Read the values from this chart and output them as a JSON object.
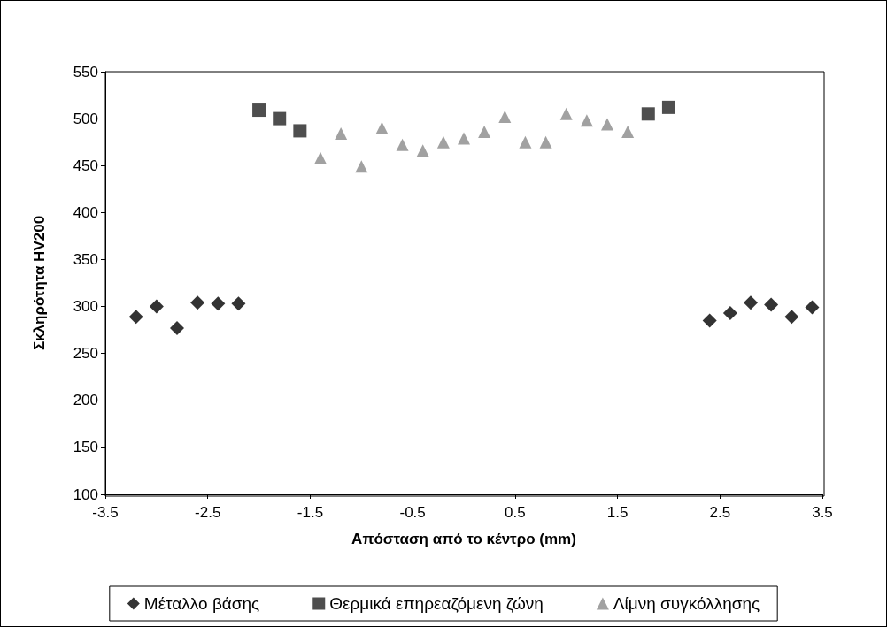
{
  "chart_data": {
    "type": "scatter",
    "xlabel": "Απόσταση από το κέντρο (mm)",
    "ylabel": "Σκληρότητα HV200",
    "xlim": [
      -3.5,
      3.5
    ],
    "xticks": [
      -3.5,
      -2.5,
      -1.5,
      -0.5,
      0.5,
      1.5,
      2.5,
      3.5
    ],
    "ylim": [
      100,
      550
    ],
    "yticks": [
      100,
      150,
      200,
      250,
      300,
      350,
      400,
      450,
      500,
      550
    ],
    "grid": false,
    "legend": "bottom",
    "series": [
      {
        "name": "Μέταλλο βάσης",
        "color": "#000000",
        "marker": "diamond",
        "x": [
          -3.2,
          -3.0,
          -2.8,
          -2.6,
          -2.4,
          -2.2,
          2.4,
          2.6,
          2.8,
          3.0,
          3.2,
          3.4
        ],
        "values": [
          289,
          300,
          277,
          304,
          303,
          303,
          285,
          293,
          304,
          302,
          289,
          299
        ]
      },
      {
        "name": "Θερμικά επηρεαζόμενη ζώνη",
        "color": "#222222",
        "marker": "square",
        "x": [
          -2.0,
          -1.8,
          -1.6,
          1.8,
          2.0
        ],
        "values": [
          509,
          500,
          487,
          505,
          512
        ]
      },
      {
        "name": "Λίμνη συγκόλλησης",
        "color": "#8a8a8a",
        "marker": "triangle",
        "x": [
          -1.4,
          -1.2,
          -1.0,
          -0.8,
          -0.6,
          -0.4,
          -0.2,
          0,
          0.2,
          0.4,
          0.6,
          0.8,
          1.0,
          1.2,
          1.4,
          1.6
        ],
        "values": [
          458,
          484,
          449,
          490,
          472,
          466,
          475,
          479,
          486,
          502,
          475,
          475,
          505,
          498,
          494,
          486
        ]
      }
    ]
  }
}
